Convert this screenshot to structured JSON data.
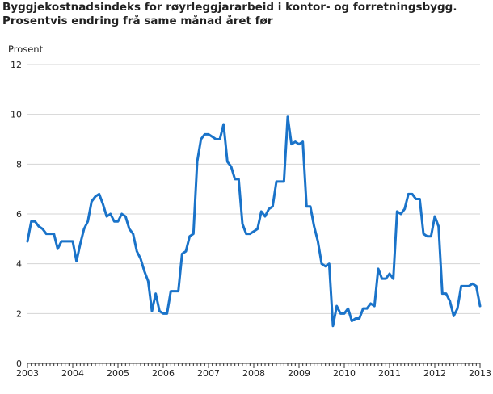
{
  "chart_data": {
    "type": "line",
    "title": "Byggjekostnadsindeks for røyrleggjararbeid i kontor- og forretningsbygg.",
    "subtitle": "Prosentvis endring frå same månad året før",
    "xlabel": "",
    "ylabel": "Prosent",
    "xlim": [
      2003,
      2013
    ],
    "ylim": [
      0,
      12
    ],
    "yticks": [
      0,
      2,
      4,
      6,
      8,
      10,
      12
    ],
    "xticks": [
      "2003",
      "2004",
      "2005",
      "2006",
      "2007",
      "2008",
      "2009",
      "2010",
      "2011",
      "2012",
      "2013"
    ],
    "grid": "horizontal",
    "color": "#1a73c9",
    "series": [
      {
        "name": "",
        "start": "2003-01",
        "frequency": "monthly",
        "values": [
          4.9,
          5.7,
          5.7,
          5.5,
          5.4,
          5.2,
          5.2,
          5.2,
          4.6,
          4.9,
          4.9,
          4.9,
          4.9,
          4.1,
          4.8,
          5.4,
          5.7,
          6.5,
          6.7,
          6.8,
          6.4,
          5.9,
          6.0,
          5.7,
          5.7,
          6.0,
          5.9,
          5.4,
          5.2,
          4.5,
          4.2,
          3.7,
          3.3,
          2.1,
          2.8,
          2.1,
          2.0,
          2.0,
          2.9,
          2.9,
          2.9,
          4.4,
          4.5,
          5.1,
          5.2,
          8.1,
          9.0,
          9.2,
          9.2,
          9.1,
          9.0,
          9.0,
          9.6,
          8.1,
          7.9,
          7.4,
          7.4,
          5.6,
          5.2,
          5.2,
          5.3,
          5.4,
          6.1,
          5.9,
          6.2,
          6.3,
          7.3,
          7.3,
          7.3,
          9.9,
          8.8,
          8.9,
          8.8,
          8.9,
          6.3,
          6.3,
          5.5,
          4.9,
          4.0,
          3.9,
          4.0,
          1.5,
          2.3,
          2.0,
          2.0,
          2.2,
          1.7,
          1.8,
          1.8,
          2.2,
          2.2,
          2.4,
          2.3,
          3.8,
          3.4,
          3.4,
          3.6,
          3.4,
          6.1,
          6.0,
          6.2,
          6.8,
          6.8,
          6.6,
          6.6,
          5.2,
          5.1,
          5.1,
          5.9,
          5.5,
          2.8,
          2.8,
          2.5,
          1.9,
          2.2,
          3.1,
          3.1,
          3.1,
          3.2,
          3.1,
          2.3
        ]
      }
    ]
  }
}
